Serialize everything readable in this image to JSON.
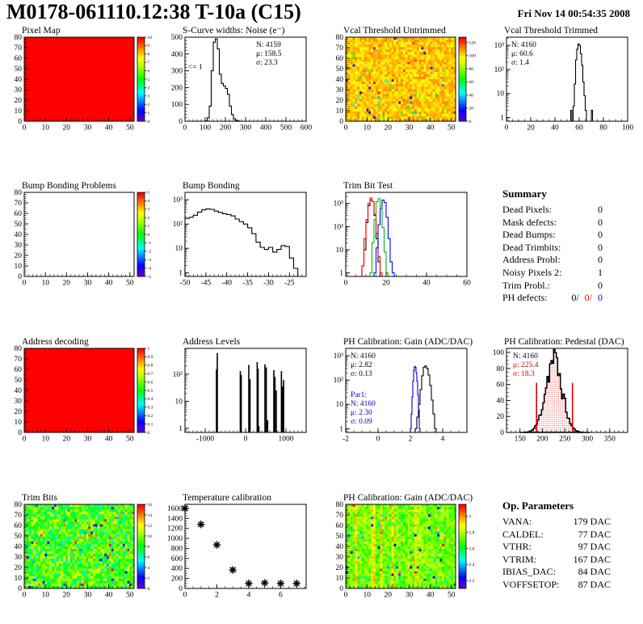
{
  "header": {
    "title": "M0178-061110.12:38 T-10a (C15)",
    "date": "Fri Nov 14 00:54:35 2008"
  },
  "summary": {
    "title": "Summary",
    "rows": [
      {
        "label": "Dead Pixels:",
        "value": "0"
      },
      {
        "label": "Mask defects:",
        "value": "0"
      },
      {
        "label": "Dead Bumps:",
        "value": "0"
      },
      {
        "label": "Dead Trimbits:",
        "value": "0"
      },
      {
        "label": "Address Probl:",
        "value": "0"
      },
      {
        "label": "Noisy Pixels 2:",
        "value": "1"
      },
      {
        "label": "Trim Probl.:",
        "value": "0"
      }
    ],
    "ph_defects": {
      "label": "PH defects:",
      "black": "0/",
      "red": "0/",
      "blue": "0"
    }
  },
  "op_parameters": {
    "title": "Op. Parameters",
    "rows": [
      {
        "label": "VANA:",
        "value": "179 DAC"
      },
      {
        "label": "CALDEL:",
        "value": "77 DAC"
      },
      {
        "label": "VTHR:",
        "value": "97 DAC"
      },
      {
        "label": "VTRIM:",
        "value": "167 DAC"
      },
      {
        "label": "IBIAS_DAC:",
        "value": "84 DAC"
      },
      {
        "label": "VOFFSETOP:",
        "value": "87 DAC"
      }
    ]
  },
  "chart_data": [
    {
      "id": "pixel_map",
      "type": "heatmap",
      "title": "Pixel Map",
      "xlim": [
        0,
        52
      ],
      "ylim": [
        0,
        80
      ],
      "xticks": [
        0,
        10,
        20,
        30,
        40,
        50
      ],
      "yticks": [
        0,
        10,
        20,
        30,
        40,
        50,
        60,
        70,
        80
      ],
      "xminor": 2,
      "yminor": 2,
      "zmin": 0,
      "zmax": 10,
      "colorbar_ticks": [
        0,
        1,
        2,
        3,
        4,
        5,
        6,
        7,
        8,
        9,
        10
      ],
      "fill": "uniform",
      "uniform_value": 10
    },
    {
      "id": "scurve_noise",
      "type": "histogram",
      "title": "S-Curve widths: Noise (e⁻)",
      "yscale": "linear",
      "xlim": [
        0,
        600
      ],
      "ylim": [
        0,
        500
      ],
      "xticks": [
        0,
        100,
        200,
        300,
        400,
        500,
        600
      ],
      "yticks": [
        0,
        100,
        200,
        300,
        400,
        500
      ],
      "xminor": 20,
      "yminor": 20,
      "series": [
        {
          "color": "#000000",
          "bins": {
            "x0": 90,
            "dx": 10,
            "values": [
              0,
              3,
              20,
              90,
              300,
              470,
              490,
              430,
              280,
              225,
              210,
              195,
              160,
              90,
              40,
              15,
              5,
              2,
              0
            ]
          }
        }
      ],
      "stats": {
        "x": 118,
        "y": 28,
        "lines": [
          {
            "text": "N: 4159",
            "color": "#000000"
          },
          {
            "text": "μ: 158.5",
            "color": "#000000"
          },
          {
            "text": "σ: 23.3",
            "color": "#000000"
          }
        ]
      },
      "annotation": {
        "text": "<= 1",
        "x": 15,
        "y": 310
      }
    },
    {
      "id": "vcal_untrimmed",
      "type": "heatmap",
      "title": "Vcal Threshold Untrimmed",
      "xlim": [
        0,
        52
      ],
      "ylim": [
        0,
        80
      ],
      "xticks": [
        0,
        10,
        20,
        30,
        40,
        50
      ],
      "yticks": [
        0,
        10,
        20,
        30,
        40,
        50,
        60,
        70,
        80
      ],
      "xminor": 2,
      "yminor": 2,
      "zmin": 0,
      "zmax": 128,
      "colorbar_ticks": [
        0,
        20,
        40,
        60,
        80,
        100,
        120
      ],
      "fill": "noise",
      "noise": {
        "mean": 104,
        "spread": 8,
        "speckle": 0.05,
        "seed": 7
      }
    },
    {
      "id": "vcal_trimmed",
      "type": "histogram",
      "title": "Vcal Threshold Trimmed",
      "yscale": "log",
      "xlim": [
        0,
        100
      ],
      "ylim": [
        0.7,
        2200
      ],
      "xticks": [
        0,
        20,
        40,
        60,
        80,
        100
      ],
      "xminor": 5,
      "series": [
        {
          "color": "#000000",
          "bins": {
            "x0": 53,
            "dx": 1,
            "values": [
              2,
              0,
              3,
              25,
              250,
              700,
              1150,
              1000,
              450,
              150,
              30,
              8,
              2,
              0,
              0,
              0,
              0,
              2
            ]
          }
        }
      ],
      "stats": {
        "x": 36,
        "y": 28,
        "lines": [
          {
            "text": "N: 4160",
            "color": "#000000"
          },
          {
            "text": "μ: 60.6",
            "color": "#000000"
          },
          {
            "text": "σ: 1.4",
            "color": "#000000"
          }
        ]
      }
    },
    {
      "id": "bump_problems",
      "type": "heatmap",
      "title": "Bump Bonding Problems",
      "xlim": [
        0,
        52
      ],
      "ylim": [
        0,
        80
      ],
      "xticks": [
        0,
        10,
        20,
        30,
        40,
        50
      ],
      "yticks": [
        0,
        10,
        20,
        30,
        40,
        50,
        60,
        70,
        80
      ],
      "xminor": 2,
      "yminor": 2,
      "zmin": -5,
      "zmax": 5,
      "colorbar_ticks": [
        -5,
        -4,
        -3,
        -2,
        -1,
        0,
        1,
        2,
        3,
        4,
        5
      ],
      "fill": "empty"
    },
    {
      "id": "bump_bonding",
      "type": "histogram",
      "title": "Bump Bonding",
      "yscale": "log",
      "xlim": [
        -50,
        -21
      ],
      "ylim": [
        0.7,
        2000
      ],
      "xticks": [
        -50,
        -45,
        -40,
        -35,
        -30,
        -25
      ],
      "xminor": 1,
      "series": [
        {
          "color": "#000000",
          "bins": {
            "x0": -50,
            "dx": 1,
            "values": [
              170,
              190,
              230,
              310,
              380,
              420,
              400,
              340,
              300,
              265,
              245,
              215,
              160,
              125,
              100,
              70,
              40,
              18,
              11,
              9,
              11,
              7,
              9,
              13,
              12,
              4,
              1.5
            ]
          }
        }
      ]
    },
    {
      "id": "trim_bit_test",
      "type": "histogram",
      "title": "Trim Bit Test",
      "yscale": "log",
      "xlim": [
        0,
        60
      ],
      "ylim": [
        0.7,
        3000
      ],
      "xticks": [
        0,
        20,
        40,
        60
      ],
      "xminor": 5,
      "series": [
        {
          "color": "#000000",
          "bins": {
            "x0": 8,
            "dx": 1,
            "values": [
              2,
              10,
              150,
              800,
              1400,
              1200,
              300,
              30,
              3
            ]
          }
        },
        {
          "color": "#ff0000",
          "bins": {
            "x0": 8,
            "dx": 1,
            "values": [
              2,
              30,
              200,
              1000,
              1700,
              1200,
              350,
              50,
              5,
              1
            ]
          }
        },
        {
          "color": "#0000ff",
          "bins": {
            "x0": 14,
            "dx": 1,
            "values": [
              1,
              12,
              120,
              600,
              1400,
              1100,
              250,
              30,
              3,
              1
            ]
          }
        },
        {
          "color": "#00bb00",
          "bins": {
            "x0": 12,
            "dx": 1,
            "values": [
              1,
              20,
              200,
              1200,
              1600,
              700,
              90,
              8,
              1
            ]
          }
        }
      ]
    },
    {
      "id": "address_decoding",
      "type": "heatmap",
      "title": "Address decoding",
      "xlim": [
        0,
        52
      ],
      "ylim": [
        0,
        80
      ],
      "xticks": [
        0,
        10,
        20,
        30,
        40,
        50
      ],
      "yticks": [
        0,
        10,
        20,
        30,
        40,
        50,
        60,
        70,
        80
      ],
      "xminor": 2,
      "yminor": 2,
      "zmin": 0,
      "zmax": 1,
      "colorbar_ticks": [
        0,
        0.1,
        0.2,
        0.3,
        0.4,
        0.5,
        0.6,
        0.7,
        0.8,
        0.9,
        1
      ],
      "fill": "uniform",
      "uniform_value": 1
    },
    {
      "id": "address_levels",
      "type": "spikes",
      "title": "Address Levels",
      "yscale": "log",
      "xlim": [
        -1500,
        1500
      ],
      "ylim": [
        0.7,
        900
      ],
      "xticks": [
        -1000,
        0,
        1000
      ],
      "xminor": 100,
      "spikes": [
        [
          -720,
          150
        ],
        [
          -700,
          600
        ],
        [
          -130,
          130
        ],
        [
          -108,
          95
        ],
        [
          80,
          220
        ],
        [
          110,
          65
        ],
        [
          288,
          280
        ],
        [
          310,
          160
        ],
        [
          330,
          1.2
        ],
        [
          480,
          230
        ],
        [
          512,
          180
        ],
        [
          545,
          2
        ],
        [
          700,
          140
        ],
        [
          728,
          80
        ],
        [
          760,
          25
        ],
        [
          888,
          130
        ],
        [
          915,
          35
        ],
        [
          942,
          60
        ]
      ]
    },
    {
      "id": "ph_gain_hist",
      "type": "histogram",
      "title": "PH Calibration: Gain (ADC/DAC)",
      "yscale": "log",
      "xlim": [
        -2,
        5.5
      ],
      "ylim": [
        0.7,
        2000
      ],
      "xticks": [
        -2,
        0,
        2,
        4
      ],
      "xminor": 0.5,
      "series": [
        {
          "color": "#000000",
          "bins": {
            "x0": 2.3,
            "dx": 0.1,
            "values": [
              1,
              3,
              10,
              40,
              150,
              330,
              380,
              300,
              160,
              60,
              15,
              4,
              1
            ]
          }
        },
        {
          "color": "#0000cc",
          "bins": {
            "x0": 2.0,
            "dx": 0.05,
            "values": [
              1,
              4,
              20,
              90,
              250,
              360,
              330,
              200,
              90,
              25,
              6,
              1
            ]
          }
        }
      ],
      "stats": {
        "x": 36,
        "y": 28,
        "lines": [
          {
            "text": "N: 4160",
            "color": "#000000"
          },
          {
            "text": "μ: 2.82",
            "color": "#000000"
          },
          {
            "text": "σ: 0.13",
            "color": "#000000"
          }
        ]
      },
      "stats2": {
        "x": 36,
        "y": 76,
        "lines": [
          {
            "text": "Par1:",
            "color": "#0000cc"
          },
          {
            "text": "N: 4160",
            "color": "#0000cc"
          },
          {
            "text": "μ: 2.30",
            "color": "#0000cc"
          },
          {
            "text": "σ: 0.09",
            "color": "#0000cc"
          }
        ]
      }
    },
    {
      "id": "ph_pedestal",
      "type": "gauss_filled",
      "title": "PH Calibration: Pedestal (DAC)",
      "yscale": "linear",
      "xlim": [
        120,
        390
      ],
      "ylim": [
        0,
        105
      ],
      "xticks": [
        150,
        200,
        250,
        300,
        350
      ],
      "yticks": [
        0,
        20,
        40,
        60,
        80,
        100
      ],
      "xminor": 10,
      "yminor": 5,
      "gauss": {
        "mean": 225.4,
        "sigma": 18.3,
        "amp": 90,
        "x0": 150,
        "dx": 3,
        "n": 52,
        "noise": 0.22,
        "seed": 11
      },
      "vlines": {
        "x": [
          187,
          267
        ],
        "top": 62,
        "color": "#dd0000"
      },
      "stats": {
        "x": 38,
        "y": 28,
        "lines": [
          {
            "text": "N: 4160",
            "color": "#000000"
          },
          {
            "text": "μ: 225.4",
            "color": "#dd0000"
          },
          {
            "text": "σ: 18.3",
            "color": "#dd0000"
          }
        ]
      }
    },
    {
      "id": "trim_bits_map",
      "type": "heatmap",
      "title": "Trim Bits",
      "xlim": [
        0,
        52
      ],
      "ylim": [
        0,
        80
      ],
      "xticks": [
        0,
        10,
        20,
        30,
        40,
        50
      ],
      "yticks": [
        0,
        10,
        20,
        30,
        40,
        50,
        60,
        70,
        80
      ],
      "xminor": 2,
      "yminor": 2,
      "zmin": 0,
      "zmax": 16,
      "colorbar_ticks": [
        0,
        2,
        4,
        6,
        8,
        10,
        12,
        14,
        16
      ],
      "fill": "noise",
      "noise": {
        "mean": 8.8,
        "spread": 2.6,
        "speckle": 0.07,
        "seed": 23
      }
    },
    {
      "id": "temp_calibration",
      "type": "scatter",
      "title": "Temperature calibration",
      "xlim": [
        0,
        7.6
      ],
      "ylim": [
        0,
        1680
      ],
      "xticks": [
        0,
        2,
        4,
        6
      ],
      "yticks": [
        0,
        200,
        400,
        600,
        800,
        1000,
        1200,
        1400,
        1600
      ],
      "xminor": 0.5,
      "yminor": 50,
      "points": [
        [
          0,
          1600
        ],
        [
          1,
          1280
        ],
        [
          2,
          870
        ],
        [
          3,
          370
        ],
        [
          4,
          100
        ],
        [
          5,
          110
        ],
        [
          6,
          100
        ],
        [
          7,
          100
        ]
      ],
      "marker": "star"
    },
    {
      "id": "ph_gain_map",
      "type": "heatmap",
      "title": "PH Calibration: Gain (ADC/DAC)",
      "xlim": [
        0,
        52
      ],
      "ylim": [
        0,
        80
      ],
      "xticks": [
        0,
        10,
        20,
        30,
        40,
        50
      ],
      "yticks": [
        0,
        10,
        20,
        30,
        40,
        50,
        60,
        70,
        80
      ],
      "xminor": 2,
      "yminor": 2,
      "zmin": 2.1,
      "zmax": 3.15,
      "colorbar_ticks": [
        2.2,
        2.4,
        2.6,
        2.8,
        3
      ],
      "fill": "noise",
      "noise": {
        "mean": 2.74,
        "spread": 0.1,
        "speckle": 0.05,
        "col_spread": 0.22,
        "seed": 41
      }
    }
  ]
}
